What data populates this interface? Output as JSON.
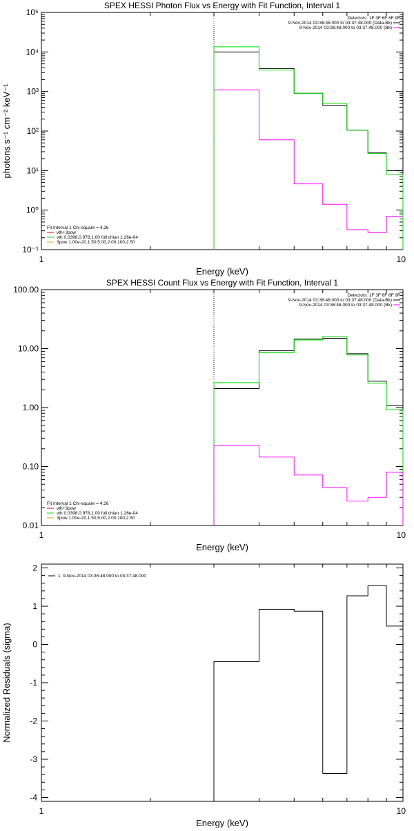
{
  "chart_data": [
    {
      "type": "line",
      "title": "SPEX HESSI Photon Flux vs Energy with Fit Function, Interval 1",
      "xlabel": "Energy (keV)",
      "ylabel": "photons s⁻¹ cm⁻² keV⁻¹",
      "xscale": "log",
      "yscale": "log",
      "xlim": [
        1,
        10
      ],
      "ylim": [
        0.1,
        100000
      ],
      "x_tick_labels": [
        "1",
        "10"
      ],
      "y_tick_labels": [
        "10⁻¹",
        "10⁰",
        "10¹",
        "10²",
        "10³",
        "10⁴",
        "10⁵"
      ],
      "y_tick_values": [
        0.1,
        1,
        10,
        100,
        1000,
        10000,
        100000
      ],
      "vline_x": 3.0,
      "bin_edges": [
        3.0,
        4.0,
        5.0,
        6.0,
        7.0,
        8.0,
        9.0,
        10.0
      ],
      "series": [
        {
          "color": "#000000",
          "values": [
            10000,
            3800,
            900,
            450,
            105,
            28,
            10
          ]
        },
        {
          "color": "#ff00ff",
          "values": [
            1100,
            60,
            4.6,
            1.4,
            0.32,
            0.27,
            0.7
          ]
        },
        {
          "color": "#00dd00",
          "values": [
            13500,
            3500,
            900,
            500,
            105,
            27,
            8
          ]
        }
      ],
      "detectors_text": "Detectors: 1F 3F 6F 8F 9F",
      "legend_top": [
        {
          "label": "9-Nov-2014 03:36:48.000 to 03:37:48.000 (Data-Bk)",
          "color": "#000000"
        },
        {
          "label": "9-Nov-2014 03:36:48.000 to 03:37:48.000 (Bk)",
          "color": "#ff00ff"
        }
      ],
      "fit_header": "Fit Interval  1   Chi-square = 4.26",
      "legend_bottom": [
        {
          "label": "vth+3pow",
          "color": "#cc0000"
        },
        {
          "label": "vth 0.0398,0.978,1.00  full chian 1.26e-04",
          "color": "#00dd00"
        },
        {
          "label": "3pow 1.00e-20,1.50,5.00,2.00,100,2.50",
          "color": "#ddaa00"
        }
      ]
    },
    {
      "type": "line",
      "title": "SPEX HESSI Count Flux vs Energy with Fit Function, Interval 1",
      "xlabel": "Energy (keV)",
      "ylabel": "",
      "xscale": "log",
      "yscale": "log",
      "xlim": [
        1,
        10
      ],
      "ylim": [
        0.01,
        100
      ],
      "x_tick_labels": [
        "1",
        "10"
      ],
      "y_tick_labels": [
        "0.01",
        "0.10",
        "1.00",
        "10.00",
        "100.00"
      ],
      "y_tick_values": [
        0.01,
        0.1,
        1,
        10,
        100
      ],
      "vline_x": 3.0,
      "bin_edges": [
        3.0,
        4.0,
        5.0,
        6.0,
        7.0,
        8.0,
        9.0,
        10.0
      ],
      "series": [
        {
          "color": "#000000",
          "values": [
            2.1,
            9.2,
            14.5,
            15.0,
            8.2,
            2.8,
            1.1
          ]
        },
        {
          "color": "#00dd00",
          "values": [
            2.65,
            8.5,
            14.0,
            16.0,
            7.8,
            2.6,
            0.92
          ]
        },
        {
          "color": "#ff00ff",
          "values": [
            0.23,
            0.145,
            0.072,
            0.044,
            0.026,
            0.03,
            0.08
          ]
        }
      ],
      "detectors_text": "Detectors: 1F 3F 6F 8F 9F",
      "legend_top": [
        {
          "label": "9-Nov-2014 03:36:48.000 to 03:37:48.000 (Data-Bk)",
          "color": "#000000"
        },
        {
          "label": "9-Nov-2014 03:36:48.000 to 03:37:48.000 (Bk)",
          "color": "#ff00ff"
        }
      ],
      "fit_header": "Fit Interval  1   Chi-square = 4.26",
      "legend_bottom": [
        {
          "label": "vth+3pow",
          "color": "#cc0000"
        },
        {
          "label": "vth 0.0398,0.978,1.00  full chian 1.26e-04",
          "color": "#00dd00"
        },
        {
          "label": "3pow 1.00e-20,1.50,5.00,2.00,100,2.50",
          "color": "#ddaa00"
        }
      ]
    },
    {
      "type": "line",
      "title": "",
      "xlabel": "Energy (keV)",
      "ylabel": "Normalized Residuals (sigma)",
      "xscale": "log",
      "yscale": "linear",
      "xlim": [
        1,
        10
      ],
      "ylim": [
        -4.1,
        2.1
      ],
      "x_tick_labels": [
        "1",
        "10"
      ],
      "y_tick_labels": [
        "-4",
        "-3",
        "-2",
        "-1",
        "0",
        "1",
        "2"
      ],
      "y_tick_values": [
        -4,
        -3,
        -2,
        -1,
        0,
        1,
        2
      ],
      "bin_edges": [
        3.0,
        4.0,
        5.0,
        6.0,
        7.0,
        8.0,
        9.0,
        10.0
      ],
      "series": [
        {
          "color": "#000000",
          "values": [
            -0.45,
            0.92,
            0.87,
            -3.37,
            1.27,
            1.54,
            0.48
          ]
        }
      ],
      "legend_top": [
        {
          "label": "1.  9-Nov-2014 03:36:48.000 to 03:37:48.000",
          "color": "#000000"
        }
      ]
    }
  ]
}
